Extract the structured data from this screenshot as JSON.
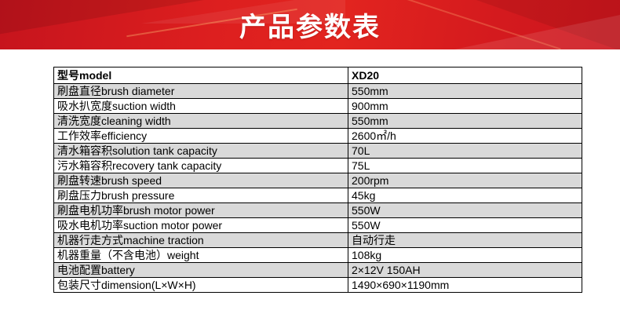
{
  "header": {
    "title": "产品参数表",
    "background_color": "#dd1f1f"
  },
  "table": {
    "stripe_color": "#d9d9d9",
    "border_color": "#000000",
    "header_row": {
      "label": "型号model",
      "value": "XD20"
    },
    "rows": [
      {
        "label": "刷盘直径brush diameter",
        "value": "550mm"
      },
      {
        "label": "吸水扒宽度suction width",
        "value": "900mm"
      },
      {
        "label": "清洗宽度cleaning width",
        "value": "550mm"
      },
      {
        "label": "工作效率efficiency",
        "value": "2600㎡/h"
      },
      {
        "label": "清水箱容积solution tank capacity",
        "value": "70L"
      },
      {
        "label": "污水箱容积recovery tank capacity",
        "value": "75L"
      },
      {
        "label": "刷盘转速brush speed",
        "value": "200rpm"
      },
      {
        "label": "刷盘压力brush pressure",
        "value": "45kg"
      },
      {
        "label": "刷盘电机功率brush motor power",
        "value": "550W"
      },
      {
        "label": "吸水电机功率suction motor power",
        "value": "550W"
      },
      {
        "label": "机器行走方式machine traction",
        "value": "自动行走"
      },
      {
        "label": "机器重量（不含电池）weight",
        "value": "108kg"
      },
      {
        "label": "电池配置battery",
        "value": "2×12V 150AH"
      },
      {
        "label": "包装尺寸dimension(L×W×H)",
        "value": "1490×690×1190mm"
      }
    ]
  }
}
